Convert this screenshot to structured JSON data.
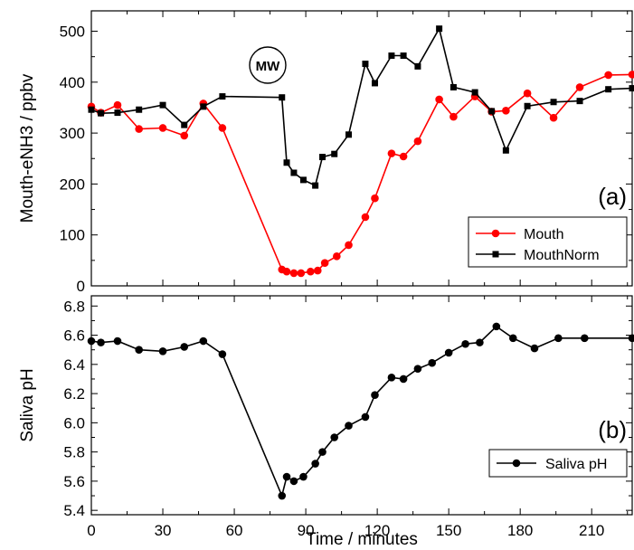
{
  "chart_data": [
    {
      "type": "line",
      "panel_label": "(a)",
      "ylabel": "Mouth-eNH3 / ppbv",
      "ylim": [
        0,
        540
      ],
      "yticks": [
        0,
        100,
        200,
        300,
        400,
        500
      ],
      "xlim": [
        0,
        227
      ],
      "xticks": [
        0,
        30,
        60,
        90,
        120,
        150,
        180,
        210
      ],
      "annotation": "MW",
      "legend_position": "lower-right",
      "series": [
        {
          "name": "Mouth",
          "color": "#ff0000",
          "marker": "circle",
          "points": [
            [
              0,
              352
            ],
            [
              4,
              340
            ],
            [
              11,
              355
            ],
            [
              20,
              308
            ],
            [
              30,
              310
            ],
            [
              39,
              295
            ],
            [
              47,
              358
            ],
            [
              55,
              310
            ],
            [
              80,
              32
            ],
            [
              82,
              28
            ],
            [
              85,
              25
            ],
            [
              88,
              25
            ],
            [
              92,
              28
            ],
            [
              95,
              30
            ],
            [
              98,
              45
            ],
            [
              103,
              58
            ],
            [
              108,
              80
            ],
            [
              115,
              135
            ],
            [
              119,
              172
            ],
            [
              126,
              260
            ],
            [
              131,
              254
            ],
            [
              137,
              284
            ],
            [
              146,
              366
            ],
            [
              152,
              332
            ],
            [
              161,
              372
            ],
            [
              168,
              342
            ],
            [
              174,
              344
            ],
            [
              183,
              378
            ],
            [
              194,
              330
            ],
            [
              205,
              390
            ],
            [
              217,
              414
            ],
            [
              227,
              415
            ]
          ]
        },
        {
          "name": "MouthNorm",
          "color": "#000000",
          "marker": "square",
          "points": [
            [
              0,
              346
            ],
            [
              4,
              339
            ],
            [
              11,
              340
            ],
            [
              20,
              346
            ],
            [
              30,
              355
            ],
            [
              39,
              316
            ],
            [
              47,
              352
            ],
            [
              55,
              372
            ],
            [
              80,
              370
            ],
            [
              82,
              242
            ],
            [
              85,
              222
            ],
            [
              89,
              208
            ],
            [
              94,
              197
            ],
            [
              97,
              253
            ],
            [
              102,
              259
            ],
            [
              108,
              297
            ],
            [
              115,
              436
            ],
            [
              119,
              398
            ],
            [
              126,
              452
            ],
            [
              131,
              452
            ],
            [
              137,
              431
            ],
            [
              146,
              505
            ],
            [
              152,
              390
            ],
            [
              161,
              380
            ],
            [
              168,
              343
            ],
            [
              174,
              266
            ],
            [
              183,
              353
            ],
            [
              194,
              361
            ],
            [
              205,
              363
            ],
            [
              217,
              386
            ],
            [
              227,
              388
            ]
          ]
        }
      ]
    },
    {
      "type": "line",
      "panel_label": "(b)",
      "ylabel": "Saliva pH",
      "xlabel": "Time / minutes",
      "ylim": [
        5.37,
        6.87
      ],
      "yticks": [
        5.4,
        5.6,
        5.8,
        6.0,
        6.2,
        6.4,
        6.6,
        6.8
      ],
      "ytick_labels": [
        "5.4",
        "5.6",
        "5.8",
        "6.0",
        "6.2",
        "6.4",
        "6.6",
        "6.8"
      ],
      "xlim": [
        0,
        227
      ],
      "xticks": [
        0,
        30,
        60,
        90,
        120,
        150,
        180,
        210
      ],
      "legend_position": "lower-right",
      "series": [
        {
          "name": "Saliva pH",
          "color": "#000000",
          "marker": "circle",
          "points": [
            [
              0,
              6.56
            ],
            [
              4,
              6.55
            ],
            [
              11,
              6.56
            ],
            [
              20,
              6.5
            ],
            [
              30,
              6.49
            ],
            [
              39,
              6.52
            ],
            [
              47,
              6.56
            ],
            [
              55,
              6.47
            ],
            [
              80,
              5.5
            ],
            [
              82,
              5.63
            ],
            [
              85,
              5.6
            ],
            [
              89,
              5.63
            ],
            [
              94,
              5.72
            ],
            [
              97,
              5.8
            ],
            [
              102,
              5.9
            ],
            [
              108,
              5.98
            ],
            [
              115,
              6.04
            ],
            [
              119,
              6.19
            ],
            [
              126,
              6.31
            ],
            [
              131,
              6.3
            ],
            [
              137,
              6.37
            ],
            [
              143,
              6.41
            ],
            [
              150,
              6.48
            ],
            [
              157,
              6.54
            ],
            [
              163,
              6.55
            ],
            [
              170,
              6.66
            ],
            [
              177,
              6.58
            ],
            [
              186,
              6.51
            ],
            [
              196,
              6.58
            ],
            [
              207,
              6.58
            ],
            [
              227,
              6.58
            ]
          ]
        }
      ]
    }
  ]
}
